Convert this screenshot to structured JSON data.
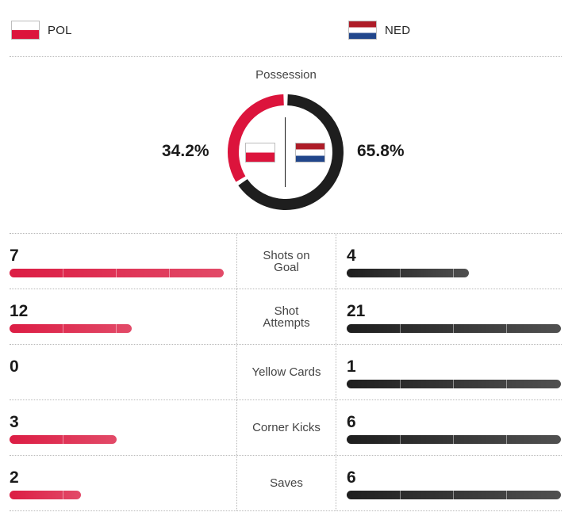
{
  "teams": {
    "home": {
      "code": "POL",
      "flag_icon": "poland-flag-icon",
      "color": "#dc143c"
    },
    "away": {
      "code": "NED",
      "flag_icon": "netherlands-flag-icon",
      "color": "#1e1e1e"
    }
  },
  "possession": {
    "title": "Possession",
    "home_fraction": 0.342,
    "away_fraction": 0.658,
    "home_label": "34.2%",
    "away_label": "65.8%"
  },
  "stats": [
    {
      "label": "Shots on Goal",
      "home": 7,
      "away": 4
    },
    {
      "label": "Shot Attempts",
      "home": 12,
      "away": 21
    },
    {
      "label": "Yellow Cards",
      "home": 0,
      "away": 1
    },
    {
      "label": "Corner Kicks",
      "home": 3,
      "away": 6
    },
    {
      "label": "Saves",
      "home": 2,
      "away": 6
    }
  ],
  "colors": {
    "home_bar": "#dc1d44",
    "away_bar": "#1e1e1e",
    "divider": "#b8b8b8"
  }
}
